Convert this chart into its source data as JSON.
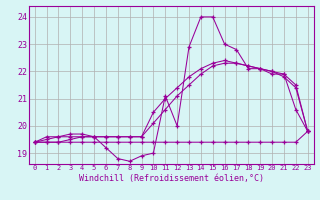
{
  "xlabel": "Windchill (Refroidissement éolien,°C)",
  "hours": [
    0,
    1,
    2,
    3,
    4,
    5,
    6,
    7,
    8,
    9,
    10,
    11,
    12,
    13,
    14,
    15,
    16,
    17,
    18,
    19,
    20,
    21,
    22,
    23
  ],
  "line1": [
    19.4,
    19.6,
    19.6,
    19.7,
    19.7,
    19.6,
    19.2,
    18.8,
    18.7,
    18.9,
    19.0,
    21.1,
    20.0,
    22.9,
    24.0,
    24.0,
    23.0,
    22.8,
    22.1,
    22.1,
    21.9,
    21.9,
    20.6,
    19.8
  ],
  "line2": [
    19.4,
    19.4,
    19.4,
    19.4,
    19.4,
    19.4,
    19.4,
    19.4,
    19.4,
    19.4,
    19.4,
    19.4,
    19.4,
    19.4,
    19.4,
    19.4,
    19.4,
    19.4,
    19.4,
    19.4,
    19.4,
    19.4,
    19.4,
    19.8
  ],
  "line3": [
    19.4,
    19.4,
    19.4,
    19.5,
    19.6,
    19.6,
    19.6,
    19.6,
    19.6,
    19.6,
    20.1,
    20.6,
    21.1,
    21.5,
    21.9,
    22.2,
    22.3,
    22.3,
    22.2,
    22.1,
    22.0,
    21.9,
    21.5,
    19.8
  ],
  "line4": [
    19.4,
    19.5,
    19.6,
    19.6,
    19.6,
    19.6,
    19.6,
    19.6,
    19.6,
    19.6,
    20.5,
    21.0,
    21.4,
    21.8,
    22.1,
    22.3,
    22.4,
    22.3,
    22.2,
    22.1,
    22.0,
    21.8,
    21.4,
    19.8
  ],
  "line_color": "#990099",
  "bg_color": "#d8f5f5",
  "grid_color": "#b0b0b0",
  "ylim": [
    18.6,
    24.4
  ],
  "yticks": [
    19,
    20,
    21,
    22,
    23,
    24
  ],
  "xlim": [
    -0.5,
    23.5
  ]
}
